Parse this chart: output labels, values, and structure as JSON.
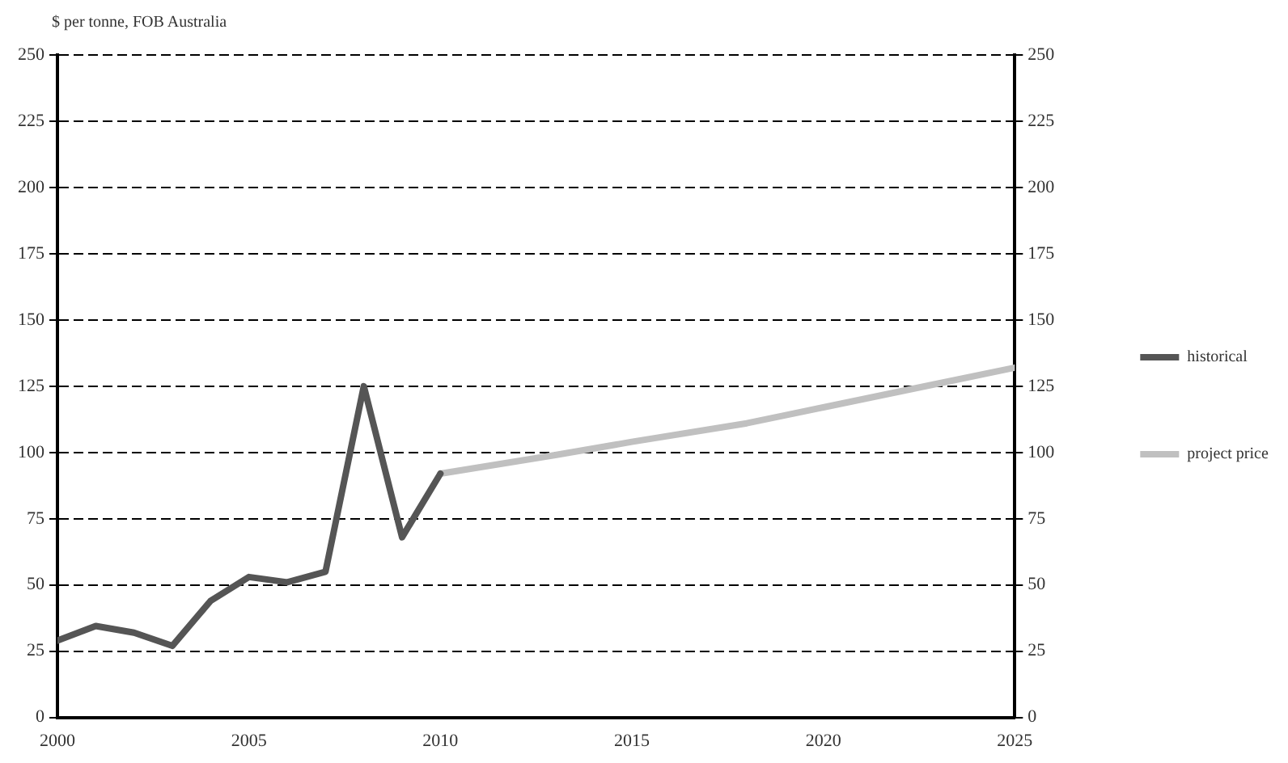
{
  "chart_data": {
    "type": "line",
    "ylabel": "$ per tonne, FOB Australia",
    "x": [
      2000,
      2001,
      2002,
      2003,
      2004,
      2005,
      2006,
      2007,
      2008,
      2009,
      2010
    ],
    "series": [
      {
        "name": "historical",
        "color": "#555555",
        "values": [
          29,
          34.5,
          32,
          27,
          44,
          53,
          51,
          55,
          125,
          68,
          92
        ]
      },
      {
        "name": "project price",
        "color": "#c0c0c0",
        "x": [
          2010,
          2013,
          2015,
          2018,
          2020,
          2023,
          2025
        ],
        "values": [
          92,
          99,
          104,
          111,
          117,
          126,
          132
        ]
      }
    ],
    "xlim": [
      2000,
      2025
    ],
    "xticks": [
      2000,
      2005,
      2010,
      2015,
      2020,
      2025
    ],
    "ylim": [
      0,
      250
    ],
    "yticks": [
      0,
      25,
      50,
      75,
      100,
      125,
      150,
      175,
      200,
      225,
      250
    ],
    "y2lim": [
      0,
      250
    ],
    "y2ticks": [
      0,
      25,
      50,
      75,
      100,
      125,
      150,
      175,
      200,
      225,
      250
    ],
    "grid": "y",
    "legend": "right",
    "marker": "none"
  }
}
